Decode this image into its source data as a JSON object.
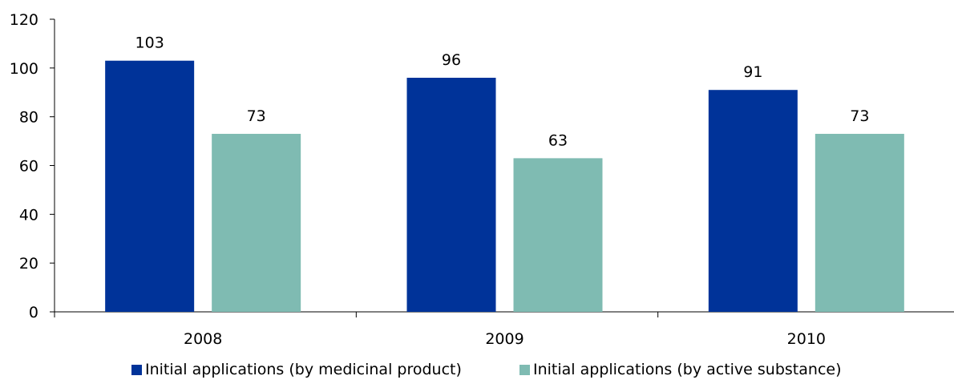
{
  "chart_data": {
    "type": "bar",
    "categories": [
      "2008",
      "2009",
      "2010"
    ],
    "series": [
      {
        "name": "Initial applications (by medicinal product)",
        "values": [
          103,
          96,
          91
        ],
        "color": "#003399"
      },
      {
        "name": "Initial applications (by active substance)",
        "values": [
          73,
          63,
          73
        ],
        "color": "#7fbbb2"
      }
    ],
    "y_ticks": [
      "0",
      "20",
      "40",
      "60",
      "80",
      "100",
      "120"
    ],
    "ylim": [
      0,
      120
    ],
    "title": "",
    "xlabel": "",
    "ylabel": "",
    "legend_position": "bottom",
    "grid": false
  }
}
